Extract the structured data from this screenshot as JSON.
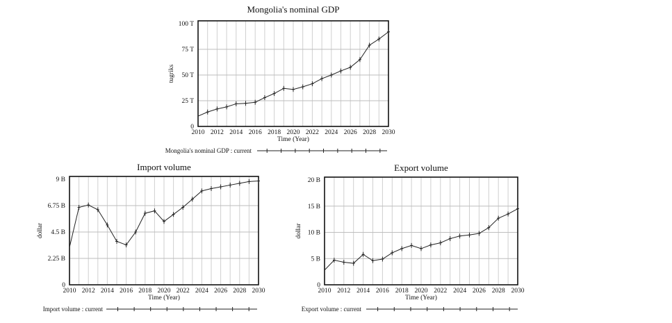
{
  "chart_data": [
    {
      "type": "line",
      "title": "Mongolia's nominal GDP",
      "xlabel": "Time (Year)",
      "ylabel": "tugriks",
      "x": [
        2010,
        2011,
        2012,
        2013,
        2014,
        2015,
        2016,
        2017,
        2018,
        2019,
        2020,
        2021,
        2022,
        2023,
        2024,
        2025,
        2026,
        2027,
        2028,
        2029,
        2030
      ],
      "xticks": [
        "2010",
        "2012",
        "2014",
        "2016",
        "2018",
        "2020",
        "2022",
        "2024",
        "2026",
        "2028",
        "2030"
      ],
      "ylim": [
        0,
        100
      ],
      "yticks": [
        {
          "v": 0,
          "label": "0"
        },
        {
          "v": 25,
          "label": "25 T"
        },
        {
          "v": 50,
          "label": "50 T"
        },
        {
          "v": 75,
          "label": "75 T"
        },
        {
          "v": 100,
          "label": "100 T"
        }
      ],
      "unit": "trillion tugriks",
      "grid": true,
      "legend_placement": "bottom",
      "series": [
        {
          "name": "Mongolia's nominal GDP : current",
          "color": "#222222",
          "values": [
            10,
            14,
            17,
            19,
            22,
            22.5,
            23.5,
            28,
            32,
            37,
            36,
            38.5,
            41.5,
            46.5,
            50,
            54,
            57.5,
            65,
            79,
            85,
            92
          ]
        }
      ]
    },
    {
      "type": "line",
      "title": "Import volume",
      "xlabel": "Time (Year)",
      "ylabel": "dollar",
      "x": [
        2010,
        2011,
        2012,
        2013,
        2014,
        2015,
        2016,
        2017,
        2018,
        2019,
        2020,
        2021,
        2022,
        2023,
        2024,
        2025,
        2026,
        2027,
        2028,
        2029,
        2030
      ],
      "xticks": [
        "2010",
        "2012",
        "2014",
        "2016",
        "2018",
        "2020",
        "2022",
        "2024",
        "2026",
        "2028",
        "2030"
      ],
      "ylim": [
        0,
        9
      ],
      "yticks": [
        {
          "v": 0,
          "label": "0"
        },
        {
          "v": 2.25,
          "label": "2.25 B"
        },
        {
          "v": 4.5,
          "label": "4.5 B"
        },
        {
          "v": 6.75,
          "label": "6.75 B"
        },
        {
          "v": 9,
          "label": "9 B"
        }
      ],
      "unit": "billion dollars",
      "grid": true,
      "legend_placement": "bottom",
      "series": [
        {
          "name": "Import volume : current",
          "color": "#222222",
          "values": [
            3.2,
            6.6,
            6.8,
            6.4,
            5.1,
            3.7,
            3.4,
            4.5,
            6.1,
            6.3,
            5.4,
            6.0,
            6.6,
            7.3,
            8.0,
            8.2,
            8.35,
            8.5,
            8.65,
            8.8,
            8.85
          ]
        }
      ]
    },
    {
      "type": "line",
      "title": "Export volume",
      "xlabel": "Time (Year)",
      "ylabel": "dollar",
      "x": [
        2010,
        2011,
        2012,
        2013,
        2014,
        2015,
        2016,
        2017,
        2018,
        2019,
        2020,
        2021,
        2022,
        2023,
        2024,
        2025,
        2026,
        2027,
        2028,
        2029,
        2030
      ],
      "xticks": [
        "2010",
        "2012",
        "2014",
        "2016",
        "2018",
        "2020",
        "2022",
        "2024",
        "2026",
        "2028",
        "2030"
      ],
      "ylim": [
        0,
        20
      ],
      "yticks": [
        {
          "v": 0,
          "label": "0"
        },
        {
          "v": 5,
          "label": "5 B"
        },
        {
          "v": 10,
          "label": "10 B"
        },
        {
          "v": 15,
          "label": "15 B"
        },
        {
          "v": 20,
          "label": "20 B"
        }
      ],
      "unit": "billion dollars",
      "grid": true,
      "legend_placement": "bottom",
      "series": [
        {
          "name": "Export volume : current",
          "color": "#222222",
          "values": [
            2.8,
            4.7,
            4.3,
            4.1,
            5.8,
            4.6,
            4.9,
            6.1,
            6.9,
            7.5,
            6.9,
            7.6,
            8.0,
            8.8,
            9.3,
            9.5,
            9.8,
            10.9,
            12.7,
            13.5,
            14.5
          ]
        }
      ]
    }
  ]
}
